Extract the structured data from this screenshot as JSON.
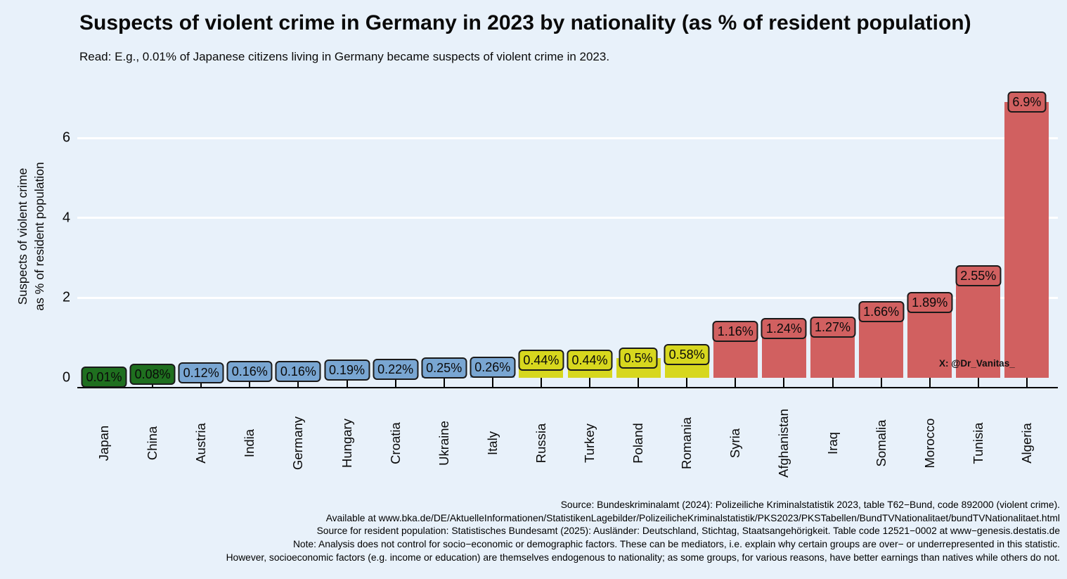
{
  "title": "Suspects of violent crime in Germany in 2023 by nationality (as % of resident population)",
  "subtitle": "Read: E.g., 0.01% of Japanese citizens living in Germany became suspects of violent crime in 2023.",
  "watermark": "X: @Dr_Vanitas_",
  "chart_data": {
    "type": "bar",
    "categories": [
      "Japan",
      "China",
      "Austria",
      "India",
      "Germany",
      "Hungary",
      "Croatia",
      "Ukraine",
      "Italy",
      "Russia",
      "Turkey",
      "Poland",
      "Romania",
      "Syria",
      "Afghanistan",
      "Iraq",
      "Somalia",
      "Morocco",
      "Tunisia",
      "Algeria"
    ],
    "values": [
      0.01,
      0.08,
      0.12,
      0.16,
      0.16,
      0.19,
      0.22,
      0.25,
      0.26,
      0.44,
      0.44,
      0.5,
      0.58,
      1.16,
      1.24,
      1.27,
      1.66,
      1.89,
      2.55,
      6.9
    ],
    "value_labels": [
      "0.01%",
      "0.08%",
      "0.12%",
      "0.16%",
      "0.16%",
      "0.19%",
      "0.22%",
      "0.25%",
      "0.26%",
      "0.44%",
      "0.44%",
      "0.5%",
      "0.58%",
      "1.16%",
      "1.24%",
      "1.27%",
      "1.66%",
      "1.89%",
      "2.55%",
      "6.9%"
    ],
    "bar_colors": [
      "#1f6f1f",
      "#1f6f1f",
      "#79a6d2",
      "#79a6d2",
      "#79a6d2",
      "#79a6d2",
      "#79a6d2",
      "#79a6d2",
      "#79a6d2",
      "#d7d71e",
      "#d7d71e",
      "#d7d71e",
      "#d7d71e",
      "#d16060",
      "#d16060",
      "#d16060",
      "#d16060",
      "#d16060",
      "#d16060",
      "#d16060"
    ],
    "group_colors": {
      "green": "#1f6f1f",
      "blue": "#79a6d2",
      "yellow": "#d7d71e",
      "red": "#d16060"
    },
    "ylabel_line1": "Suspects of violent crime",
    "ylabel_line2": "as % of resident population",
    "yticks": [
      0,
      2,
      4,
      6
    ],
    "ylim": [
      0,
      7.1
    ],
    "xlabel": "",
    "grid": {
      "axis": "y",
      "color": "#ffffff"
    },
    "legend": "none",
    "background": "#e8f1fa"
  },
  "footer": {
    "lines": [
      "Source: Bundeskriminalamt (2024): Polizeiliche Kriminalstatistik 2023, table T62−Bund, code 892000 (violent crime).",
      "Available at www.bka.de/DE/AktuelleInformationen/StatistikenLagebilder/PolizeilicheKriminalstatistik/PKS2023/PKSTabellen/BundTVNationalitaet/bundTVNationalitaet.html",
      "Source for resident population: Statistisches Bundesamt (2025): Ausländer: Deutschland, Stichtag, Staatsangehörigkeit. Table code 12521−0002 at www−genesis.destatis.de",
      "Note: Analysis does not control for socio−economic or demographic factors. These can be mediators, i.e. explain why certain groups are over− or underrepresented in this statistic.",
      "However, socioeconomic factors (e.g. income or education) are themselves endogenous to nationality; as some groups, for various reasons, have better earnings than natives while others do not."
    ]
  }
}
